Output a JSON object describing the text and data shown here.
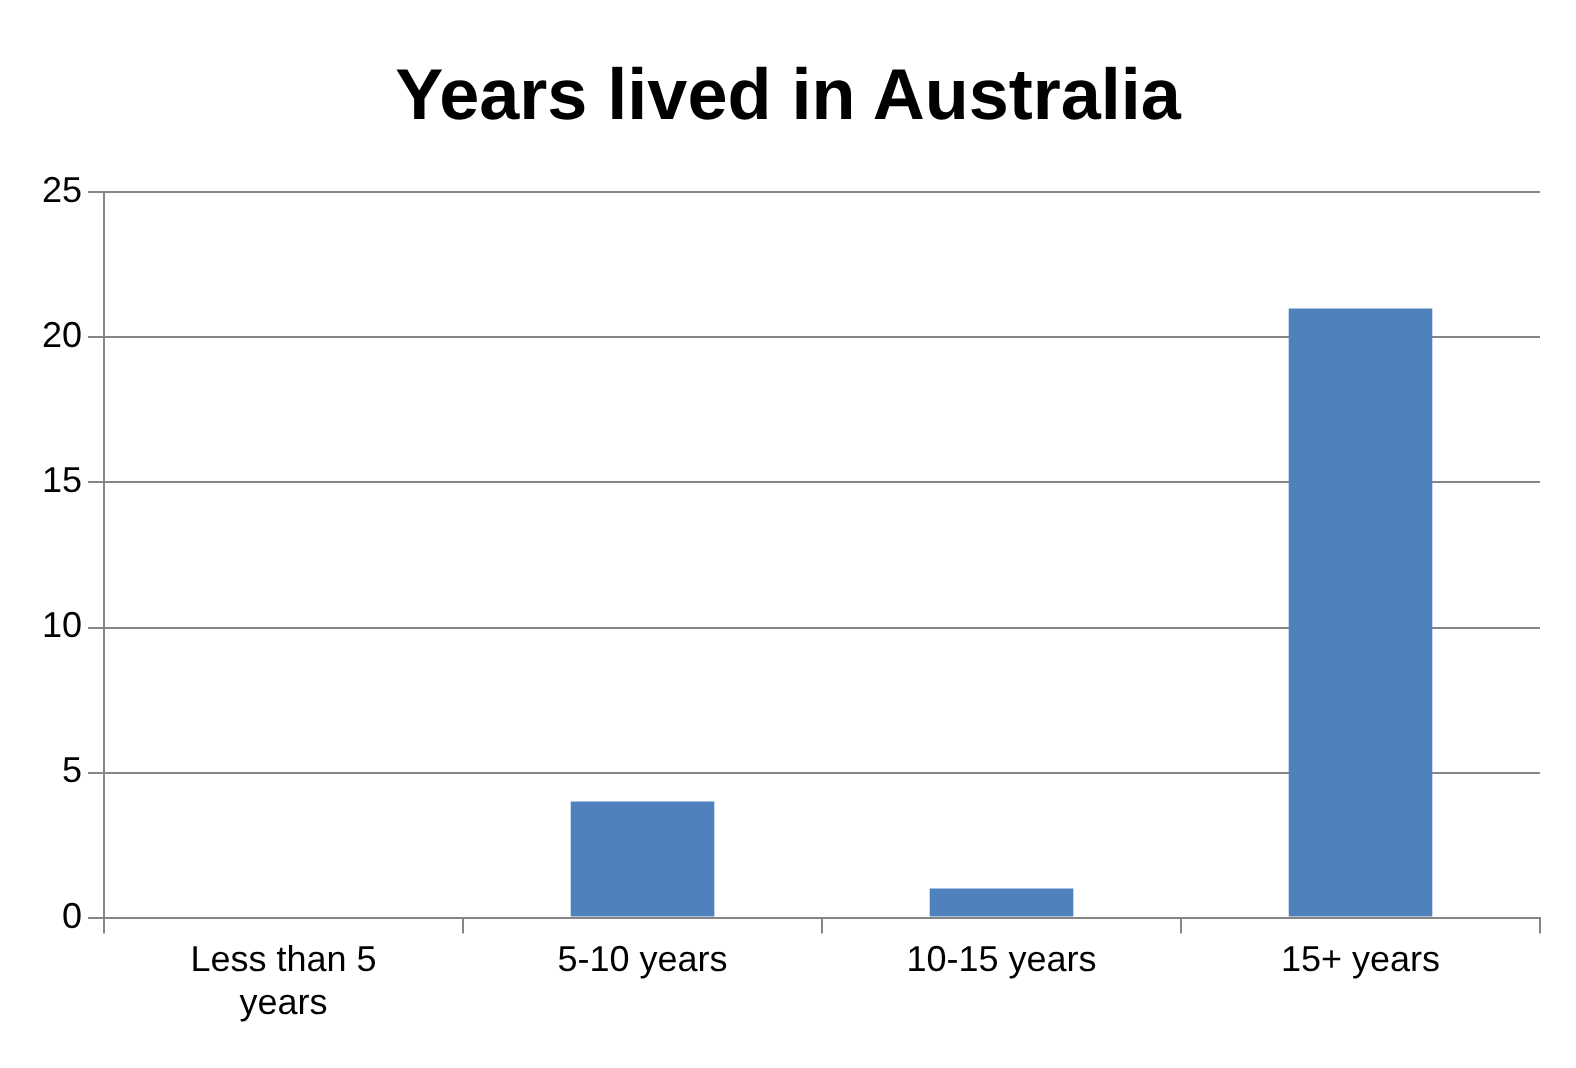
{
  "chart_data": {
    "type": "bar",
    "title": "Years lived in Australia",
    "categories": [
      "Less than 5 years",
      "5-10 years",
      "10-15 years",
      "15+ years"
    ],
    "values": [
      0,
      4,
      1,
      21
    ],
    "color": "#4f81bd",
    "ylim": [
      0,
      25
    ],
    "yticks": [
      0,
      5,
      10,
      15,
      20,
      25
    ],
    "grid": "y",
    "legend": false
  }
}
